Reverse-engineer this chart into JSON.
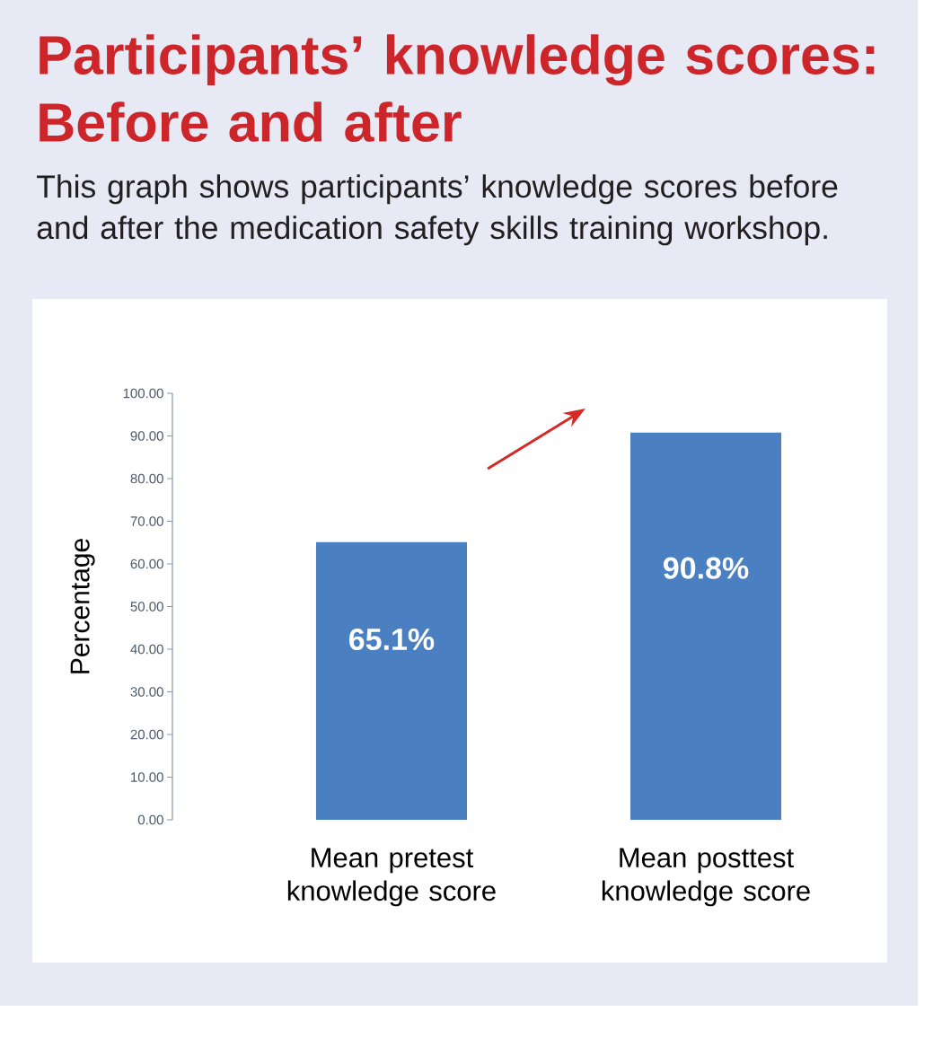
{
  "chart_data": {
    "type": "bar",
    "title": "Participants’ knowledge scores: Before and after",
    "subtitle": "This graph shows participants’ knowledge scores before and after the medication safety skills training workshop.",
    "ylabel": "Percentage",
    "categories": [
      "Mean pretest knowledge score",
      "Mean posttest knowledge score"
    ],
    "values": [
      65.1,
      90.8
    ],
    "value_labels": [
      "65.1%",
      "90.8%"
    ],
    "color": "#4a7fc2",
    "ylim": [
      0,
      100
    ],
    "yticks": [
      {
        "value": 0,
        "label": "0.00"
      },
      {
        "value": 10,
        "label": "10.00"
      },
      {
        "value": 20,
        "label": "20.00"
      },
      {
        "value": 30,
        "label": "30.00"
      },
      {
        "value": 40,
        "label": "40.00"
      },
      {
        "value": 50,
        "label": "50.00"
      },
      {
        "value": 60,
        "label": "60.00"
      },
      {
        "value": 70,
        "label": "70.00"
      },
      {
        "value": 80,
        "label": "80.00"
      },
      {
        "value": 90,
        "label": "90.00"
      },
      {
        "value": 100,
        "label": "100.00"
      }
    ]
  }
}
